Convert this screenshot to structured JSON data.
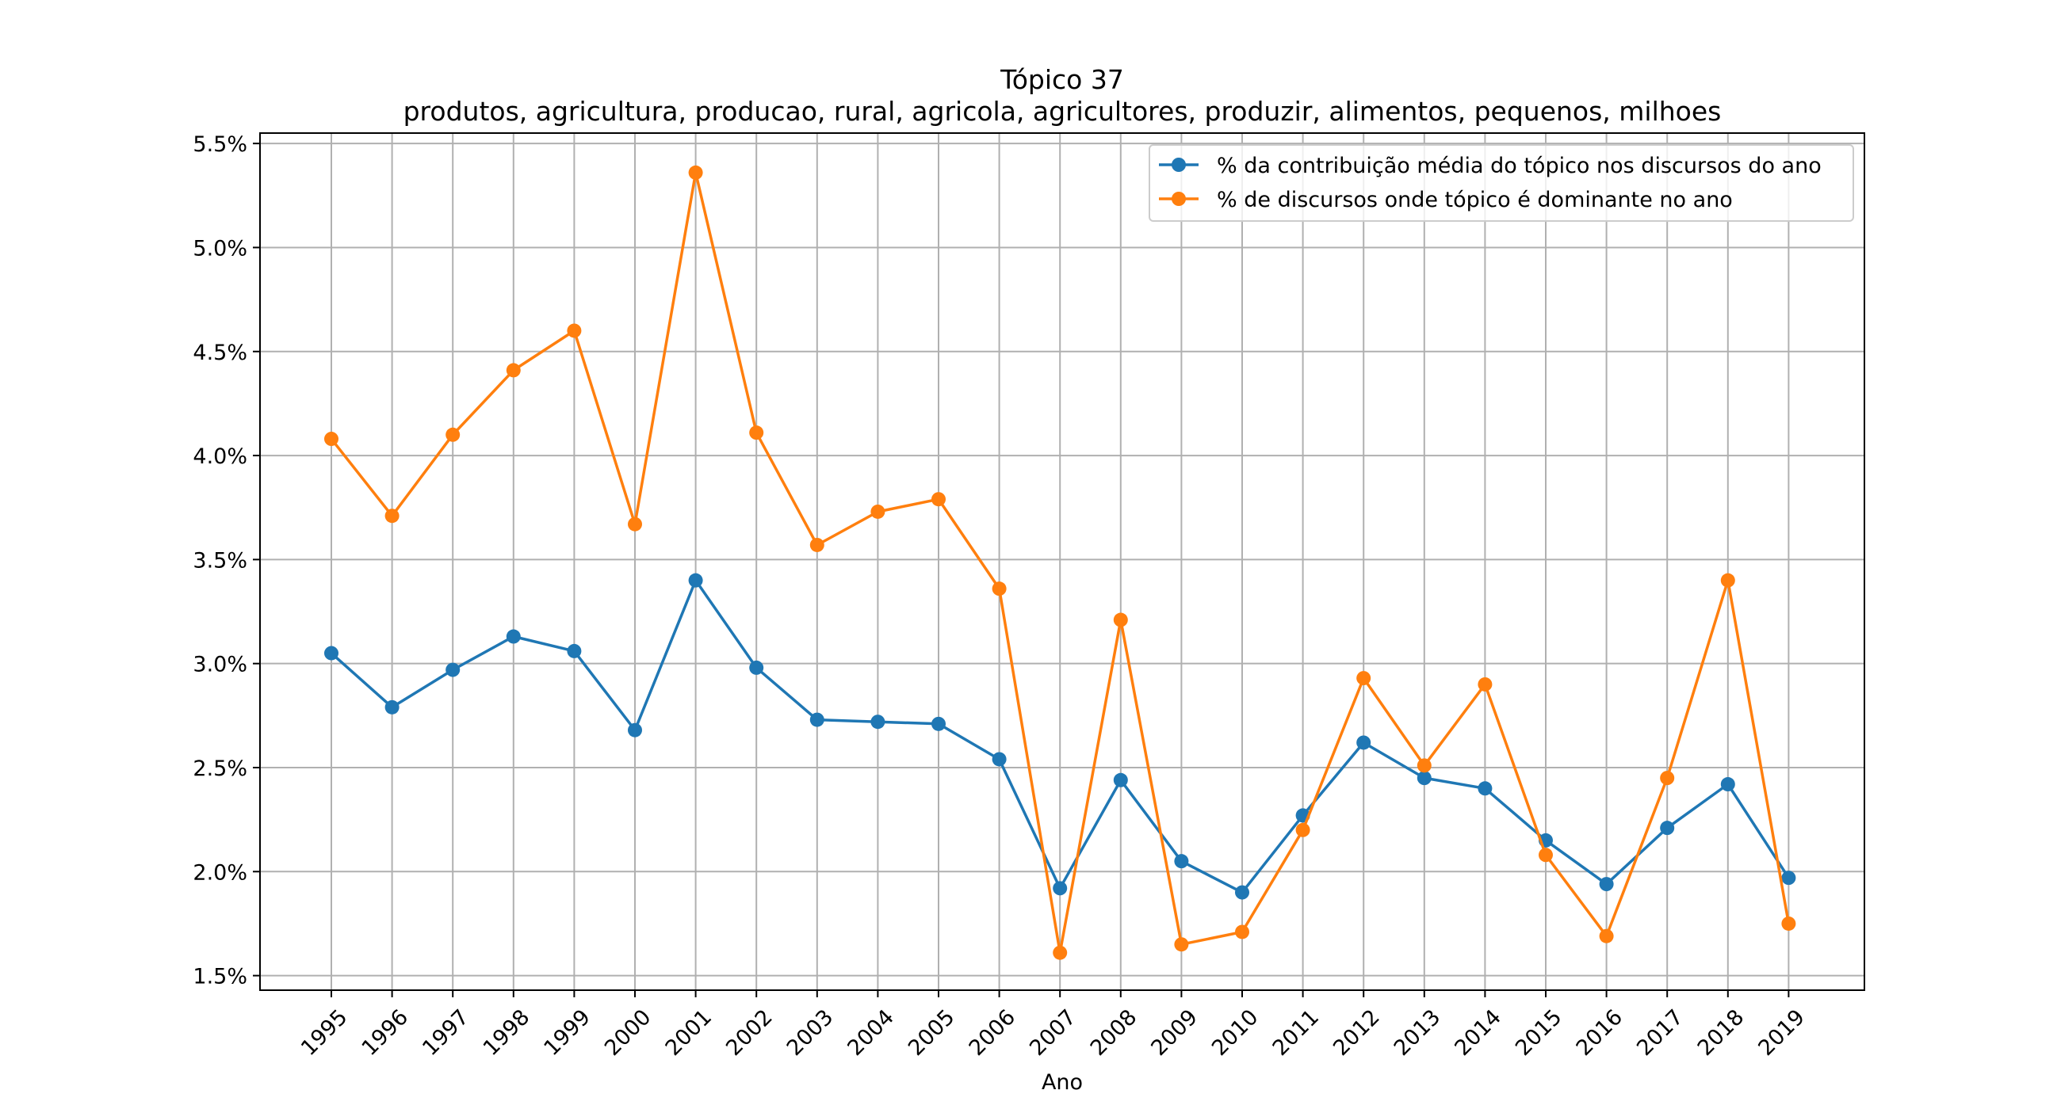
{
  "chart_data": {
    "type": "line",
    "title": "Tópico 37",
    "subtitle": "produtos, agricultura, producao, rural, agricola, agricultores, produzir, alimentos, pequenos, milhoes",
    "xlabel": "Ano",
    "ylabel": "",
    "x": [
      "1995",
      "1996",
      "1997",
      "1998",
      "1999",
      "2000",
      "2001",
      "2002",
      "2003",
      "2004",
      "2005",
      "2006",
      "2007",
      "2008",
      "2009",
      "2010",
      "2011",
      "2012",
      "2013",
      "2014",
      "2015",
      "2016",
      "2017",
      "2018",
      "2019"
    ],
    "y_ticks": [
      "1.5%",
      "2.0%",
      "2.5%",
      "3.0%",
      "3.5%",
      "4.0%",
      "4.5%",
      "5.0%",
      "5.5%"
    ],
    "y_tick_values": [
      1.5,
      2.0,
      2.5,
      3.0,
      3.5,
      4.0,
      4.5,
      5.0,
      5.5
    ],
    "ylim": [
      1.43,
      5.55
    ],
    "y_unit": "%",
    "grid": true,
    "legend_position": "top-right",
    "series": [
      {
        "name": "% da contribuição média do tópico nos discursos do ano",
        "color": "#1f77b4",
        "values": [
          3.05,
          2.79,
          2.97,
          3.13,
          3.06,
          2.68,
          3.4,
          2.98,
          2.73,
          2.72,
          2.71,
          2.54,
          1.92,
          2.44,
          2.05,
          1.9,
          2.27,
          2.62,
          2.45,
          2.4,
          2.15,
          1.94,
          2.21,
          2.42,
          1.97
        ]
      },
      {
        "name": "% de discursos onde tópico é dominante no ano",
        "color": "#ff7f0e",
        "values": [
          4.08,
          3.71,
          4.1,
          4.41,
          4.6,
          3.67,
          5.36,
          4.11,
          3.57,
          3.73,
          3.79,
          3.36,
          1.61,
          3.21,
          1.65,
          1.71,
          2.2,
          2.93,
          2.51,
          2.9,
          2.08,
          1.69,
          2.45,
          3.4,
          1.75
        ]
      }
    ]
  }
}
